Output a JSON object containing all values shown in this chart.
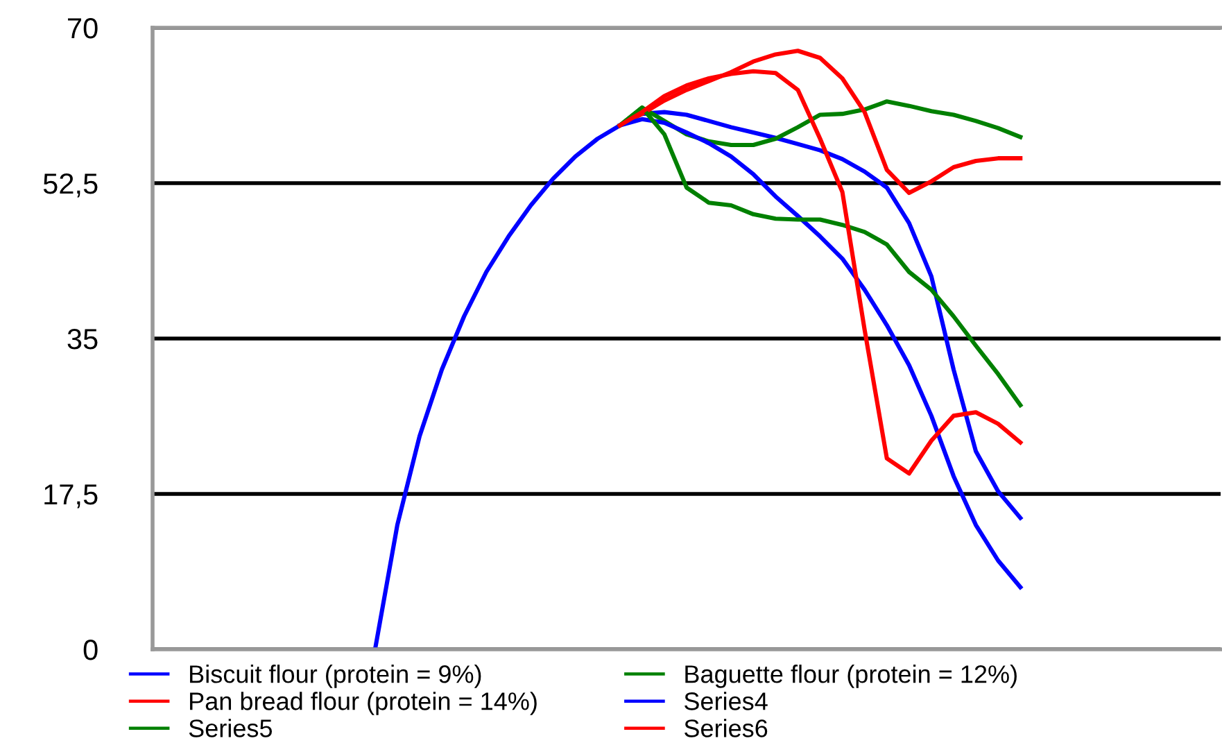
{
  "chart_data": {
    "type": "line",
    "categories": [
      null,
      null,
      null,
      null,
      null,
      null,
      null,
      null,
      null,
      null,
      null,
      null,
      null,
      null,
      null,
      null,
      null,
      null,
      null,
      null,
      null,
      null,
      null,
      null,
      null,
      null,
      null,
      null,
      null,
      null,
      null,
      null,
      null,
      null,
      null,
      null,
      null,
      null,
      null,
      null,
      null,
      null,
      null,
      null,
      null,
      null,
      null,
      null,
      null
    ],
    "series": [
      {
        "name": "Biscuit flour (protein = 9%)",
        "color": "#0000ff",
        "values": [
          null,
          null,
          null,
          null,
          null,
          null,
          null,
          null,
          null,
          null,
          0,
          14,
          24,
          31.5,
          37.5,
          42.5,
          46.5,
          50,
          53,
          55.5,
          57.5,
          59,
          60.3,
          60.5,
          60.2,
          59.5,
          58.8,
          58.2,
          57.6,
          56.9,
          56.2,
          55.2,
          53.8,
          52,
          48,
          42,
          31.5,
          22.3,
          17.8,
          14.8,
          null,
          null,
          null,
          null,
          null,
          null,
          null,
          null,
          null
        ]
      },
      {
        "name": "Baguette flour (protein = 12%)",
        "color": "#008000",
        "values": [
          null,
          null,
          null,
          null,
          null,
          null,
          null,
          null,
          null,
          null,
          null,
          null,
          null,
          null,
          null,
          null,
          null,
          null,
          null,
          null,
          null,
          59,
          61,
          59.5,
          58,
          57.2,
          56.8,
          56.8,
          57.5,
          58.8,
          60.2,
          60.3,
          60.8,
          61.7,
          61.2,
          60.6,
          60.2,
          59.5,
          58.7,
          57.7,
          null,
          null,
          null,
          null,
          null,
          null,
          null,
          null,
          null
        ]
      },
      {
        "name": "Pan bread flour (protein = 14%)",
        "color": "#ff0000",
        "values": [
          null,
          null,
          null,
          null,
          null,
          null,
          null,
          null,
          null,
          null,
          null,
          null,
          null,
          null,
          null,
          null,
          null,
          null,
          null,
          null,
          null,
          59,
          60.3,
          61.8,
          63,
          64,
          65,
          66.2,
          67,
          67.4,
          66.6,
          64.3,
          60.5,
          54,
          51.4,
          52.7,
          54.3,
          55,
          55.3,
          55.3,
          null,
          null,
          null,
          null,
          null,
          null,
          null,
          null,
          null
        ]
      },
      {
        "name": "Series4",
        "color": "#0000ff",
        "values": [
          null,
          null,
          null,
          null,
          null,
          null,
          null,
          null,
          null,
          null,
          null,
          null,
          null,
          null,
          null,
          null,
          null,
          null,
          null,
          null,
          null,
          59,
          59.7,
          59.3,
          58.2,
          57,
          55.5,
          53.5,
          51,
          48.8,
          46.5,
          44,
          40.5,
          36.5,
          32,
          26.3,
          19.5,
          14,
          10,
          7,
          null,
          null,
          null,
          null,
          null,
          null,
          null,
          null,
          null
        ]
      },
      {
        "name": "Series5",
        "color": "#008000",
        "values": [
          null,
          null,
          null,
          null,
          null,
          null,
          null,
          null,
          null,
          null,
          null,
          null,
          null,
          null,
          null,
          null,
          null,
          null,
          null,
          null,
          null,
          59,
          61,
          58,
          52,
          50.3,
          50,
          49,
          48.5,
          48.4,
          48.4,
          47.8,
          47,
          45.6,
          42.5,
          40.5,
          37.5,
          34.2,
          31,
          27.5,
          null,
          null,
          null,
          null,
          null,
          null,
          null,
          null,
          null
        ]
      },
      {
        "name": "Series6",
        "color": "#ff0000",
        "values": [
          null,
          null,
          null,
          null,
          null,
          null,
          null,
          null,
          null,
          null,
          null,
          null,
          null,
          null,
          null,
          null,
          null,
          null,
          null,
          null,
          null,
          59,
          60.5,
          62.3,
          63.5,
          64.3,
          64.8,
          65.1,
          64.9,
          63,
          57.5,
          51.5,
          36,
          21.5,
          19.8,
          23.5,
          26.3,
          26.7,
          25.4,
          23.3,
          null,
          null,
          null,
          null,
          null,
          null,
          null,
          null,
          null
        ]
      }
    ],
    "ylim": [
      0,
      70
    ],
    "yticks": [
      0,
      {
        "value": 17.5,
        "label": "17,5"
      },
      35,
      {
        "value": 52.5,
        "label": "52,5"
      },
      70
    ],
    "grid": "y",
    "legend": "bottom",
    "tick_labels": "y",
    "marker": "none",
    "line_style": "solid"
  }
}
